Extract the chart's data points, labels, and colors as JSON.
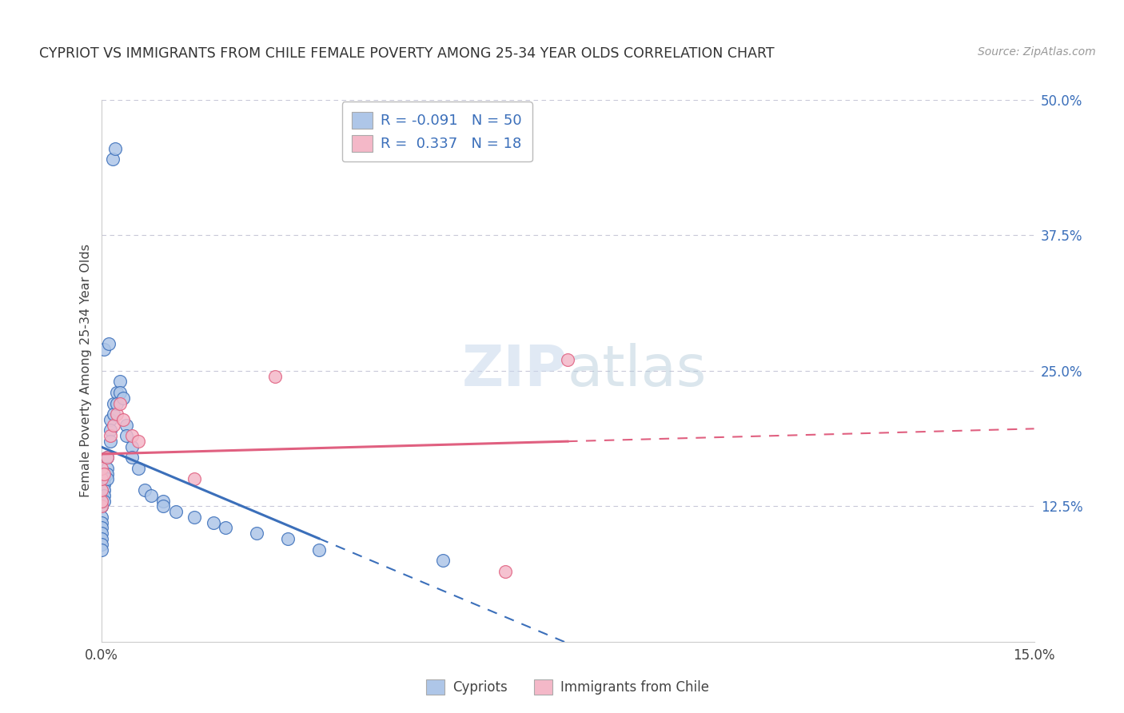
{
  "title": "CYPRIOT VS IMMIGRANTS FROM CHILE FEMALE POVERTY AMONG 25-34 YEAR OLDS CORRELATION CHART",
  "source": "Source: ZipAtlas.com",
  "ylabel": "Female Poverty Among 25-34 Year Olds",
  "xlim": [
    0.0,
    15.0
  ],
  "ylim": [
    0.0,
    50.0
  ],
  "yticks_right": [
    12.5,
    25.0,
    37.5,
    50.0
  ],
  "ytick_labels_right": [
    "12.5%",
    "25.0%",
    "37.5%",
    "50.0%"
  ],
  "cypriot_color": "#aec6e8",
  "chile_color": "#f4b8c8",
  "cypriot_R": -0.091,
  "cypriot_N": 50,
  "chile_R": 0.337,
  "chile_N": 18,
  "legend_labels": [
    "Cypriots",
    "Immigrants from Chile"
  ],
  "line_color_blue": "#3b6fba",
  "line_color_pink": "#e06080",
  "grid_color": "#c8c8d8",
  "background_color": "#ffffff",
  "cypriot_x": [
    0.18,
    0.22,
    0.05,
    0.12,
    0.0,
    0.0,
    0.0,
    0.0,
    0.0,
    0.0,
    0.0,
    0.0,
    0.0,
    0.0,
    0.05,
    0.05,
    0.05,
    0.05,
    0.05,
    0.1,
    0.1,
    0.1,
    0.1,
    0.15,
    0.15,
    0.15,
    0.2,
    0.2,
    0.25,
    0.25,
    0.3,
    0.3,
    0.35,
    0.4,
    0.4,
    0.5,
    0.5,
    0.6,
    0.7,
    0.8,
    1.0,
    1.0,
    1.2,
    1.5,
    1.8,
    2.0,
    2.5,
    3.0,
    3.5,
    5.5
  ],
  "cypriot_y": [
    44.5,
    45.5,
    27.0,
    27.5,
    12.5,
    12.5,
    13.0,
    11.5,
    11.0,
    10.5,
    10.0,
    9.5,
    9.0,
    8.5,
    15.0,
    14.5,
    14.0,
    13.5,
    13.0,
    17.0,
    16.0,
    15.5,
    15.0,
    20.5,
    19.5,
    18.5,
    22.0,
    21.0,
    23.0,
    22.0,
    24.0,
    23.0,
    22.5,
    20.0,
    19.0,
    18.0,
    17.0,
    16.0,
    14.0,
    13.5,
    13.0,
    12.5,
    12.0,
    11.5,
    11.0,
    10.5,
    10.0,
    9.5,
    8.5,
    7.5
  ],
  "chile_x": [
    0.0,
    0.0,
    0.0,
    0.0,
    0.0,
    0.05,
    0.1,
    0.15,
    0.2,
    0.25,
    0.3,
    0.35,
    0.5,
    0.6,
    1.5,
    2.8,
    6.5,
    7.5
  ],
  "chile_y": [
    12.5,
    13.0,
    14.0,
    15.0,
    16.0,
    15.5,
    17.0,
    19.0,
    20.0,
    21.0,
    22.0,
    20.5,
    19.0,
    18.5,
    15.0,
    24.5,
    6.5,
    26.0
  ]
}
